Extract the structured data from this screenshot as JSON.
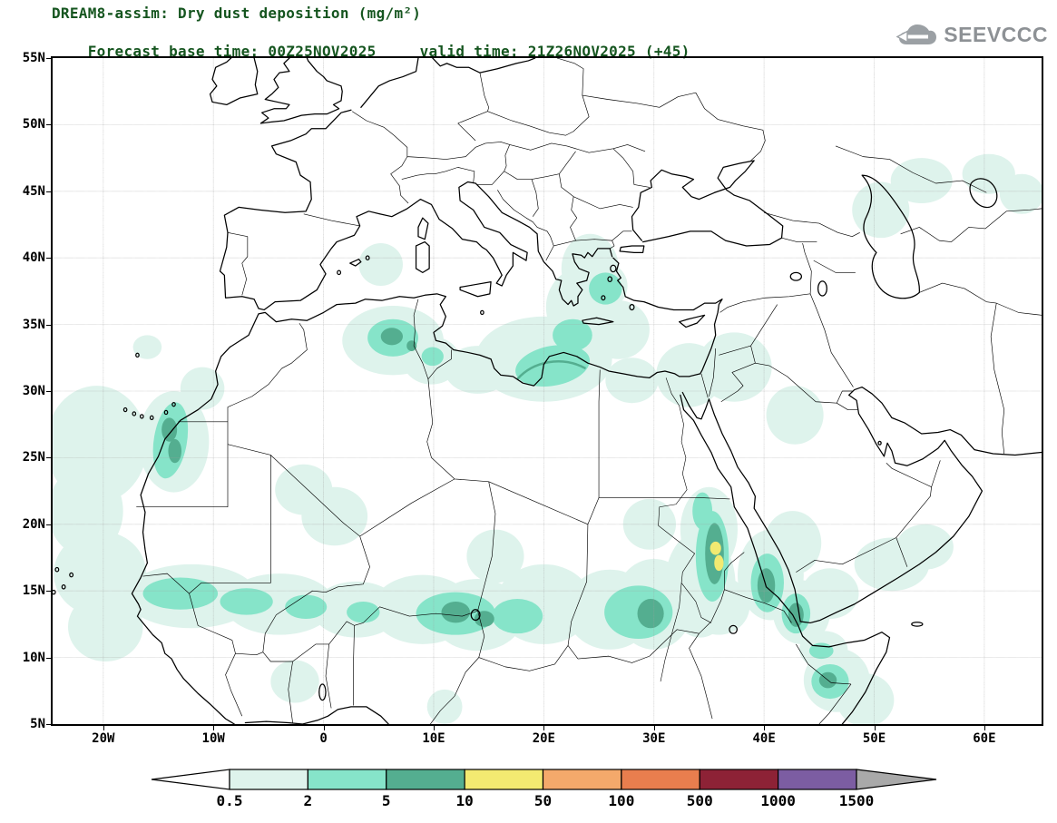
{
  "header": {
    "title": "DREAM8-assim: Dry dust deposition (mg/m²)",
    "base_time": "Forecast base time: 00Z25NOV2025",
    "valid_time": "valid time: 21Z26NOV2025 (+45)"
  },
  "logo": {
    "text": "SEEVCCC"
  },
  "axes": {
    "x_ticks": [
      {
        "v": -20,
        "label": "20W"
      },
      {
        "v": -10,
        "label": "10W"
      },
      {
        "v": 0,
        "label": "0"
      },
      {
        "v": 10,
        "label": "10E"
      },
      {
        "v": 20,
        "label": "20E"
      },
      {
        "v": 30,
        "label": "30E"
      },
      {
        "v": 40,
        "label": "40E"
      },
      {
        "v": 50,
        "label": "50E"
      },
      {
        "v": 60,
        "label": "60E"
      }
    ],
    "y_ticks": [
      {
        "v": 55,
        "label": "55N"
      },
      {
        "v": 50,
        "label": "50N"
      },
      {
        "v": 45,
        "label": "45N"
      },
      {
        "v": 40,
        "label": "40N"
      },
      {
        "v": 35,
        "label": "35N"
      },
      {
        "v": 30,
        "label": "30N"
      },
      {
        "v": 25,
        "label": "25N"
      },
      {
        "v": 20,
        "label": "20N"
      },
      {
        "v": 15,
        "label": "15N"
      },
      {
        "v": 10,
        "label": "10N"
      },
      {
        "v": 5,
        "label": "5N"
      }
    ]
  },
  "colorbar": {
    "units": "mg/m²",
    "labels": [
      "0.5",
      "2",
      "5",
      "10",
      "50",
      "100",
      "500",
      "1000",
      "1500"
    ],
    "colors": [
      "#ffffff",
      "#def3ec",
      "#86e4c9",
      "#54ae90",
      "#f3ea71",
      "#f4a96b",
      "#e97e4e",
      "#8d2236",
      "#7c5da2",
      "#a9a9a9"
    ]
  },
  "chart_data": {
    "type": "heatmap",
    "subtype": "filled-contour-map-on-geographic-map",
    "model": "DREAM8-assim",
    "variable": "Dry dust deposition",
    "units": "mg/m²",
    "title": "DREAM8-assim: Dry dust deposition (mg/m²)",
    "forecast_base_time": "00Z25NOV2025",
    "valid_time": "21Z26NOV2025",
    "forecast_hour": 45,
    "map_extent": {
      "lon_min": -25,
      "lon_max": 65,
      "lat_min": 5,
      "lat_max": 55
    },
    "contour_levels_mg_m2": [
      0.5,
      2,
      5,
      10,
      50,
      100,
      500,
      1000,
      1500
    ],
    "grid": "dotted, every 10 deg lon / 5 deg lat",
    "legend_position": "bottom horizontal colorbar with out-of-range arrows",
    "regions": [
      {
        "name": "Atlantic off West African coast",
        "lon": -21,
        "lat": 25,
        "max_level": "0.5-2"
      },
      {
        "name": "Western Sahara / S Morocco coast",
        "lon": -14,
        "lat": 26.5,
        "max_level": "5-10"
      },
      {
        "name": "NE Algeria chott region",
        "lon": 6,
        "lat": 34,
        "max_level": "5-10"
      },
      {
        "name": "N Libya / Gulf of Sidra",
        "lon": 20,
        "lat": 32,
        "max_level": "5-10"
      },
      {
        "name": "Aegean Sea and Greece",
        "lon": 24,
        "lat": 38.5,
        "max_level": "2-5"
      },
      {
        "name": "Sahel band Senegal to Chad",
        "lon": 0,
        "lat": 14,
        "max_level": "2-5"
      },
      {
        "name": "SE Niger / Lake Chad area",
        "lon": 12,
        "lat": 13.5,
        "max_level": "5-10"
      },
      {
        "name": "Kordofan / W Sudan",
        "lon": 29.5,
        "lat": 13,
        "max_level": "5-10"
      },
      {
        "name": "E Sudan Nile valley",
        "lon": 35.6,
        "lat": 17.6,
        "max_level": "10-50"
      },
      {
        "name": "Eritrean Red Sea coast",
        "lon": 40.3,
        "lat": 15.5,
        "max_level": "5-10"
      },
      {
        "name": "Bab-el-Mandeb / W Yemen",
        "lon": 43,
        "lat": 13,
        "max_level": "5-10"
      },
      {
        "name": "NE Somalia",
        "lon": 46,
        "lat": 8,
        "max_level": "5-10"
      },
      {
        "name": "Jordan / NW Saudi Arabia",
        "lon": 37,
        "lat": 31.5,
        "max_level": "0.5-2"
      },
      {
        "name": "S Oman coast",
        "lon": 52,
        "lat": 17,
        "max_level": "0.5-2"
      },
      {
        "name": "Caspian / Aral region",
        "lon": 52,
        "lat": 44.5,
        "max_level": "0.5-2"
      }
    ]
  }
}
